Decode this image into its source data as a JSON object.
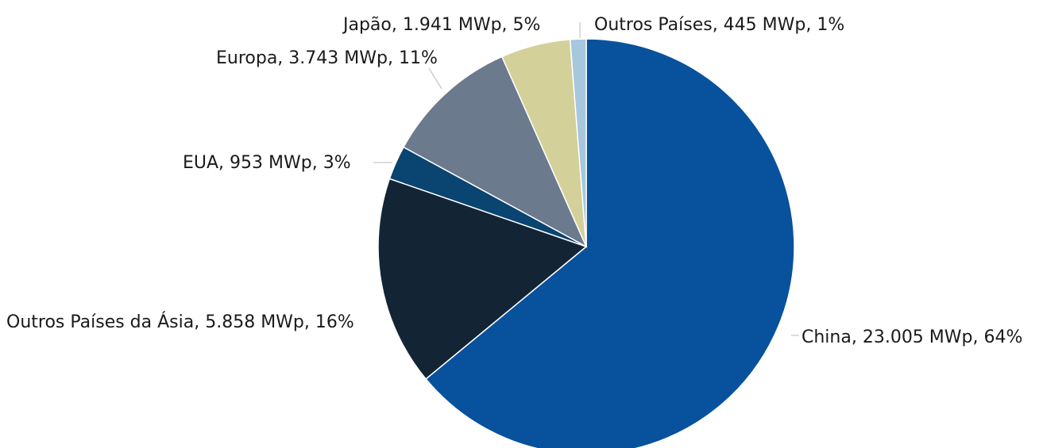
{
  "chart_data": {
    "type": "pie",
    "title": "",
    "start_angle_deg": 0,
    "direction": "clockwise",
    "slices": [
      {
        "label": "China, 23.005 MWp, 64%",
        "category": "China",
        "value_mwp": 23005,
        "percent": 64,
        "color": "#08519C"
      },
      {
        "label": "Outros Países da Ásia, 5.858 MWp, 16%",
        "category": "Outros Países da Ásia",
        "value_mwp": 5858,
        "percent": 16,
        "color": "#132435"
      },
      {
        "label": "EUA, 953 MWp, 3%",
        "category": "EUA",
        "value_mwp": 953,
        "percent": 3,
        "color": "#0A4470"
      },
      {
        "label": "Europa, 3.743 MWp, 11%",
        "category": "Europa",
        "value_mwp": 3743,
        "percent": 11,
        "color": "#6B7A8D"
      },
      {
        "label": "Japão, 1.941 MWp, 5%",
        "category": "Japão",
        "value_mwp": 1941,
        "percent": 5,
        "color": "#D3D09A"
      },
      {
        "label": "Outros Países, 445 MWp, 1%",
        "category": "Outros Países",
        "value_mwp": 445,
        "percent": 1,
        "color": "#A6C7DD"
      }
    ]
  }
}
